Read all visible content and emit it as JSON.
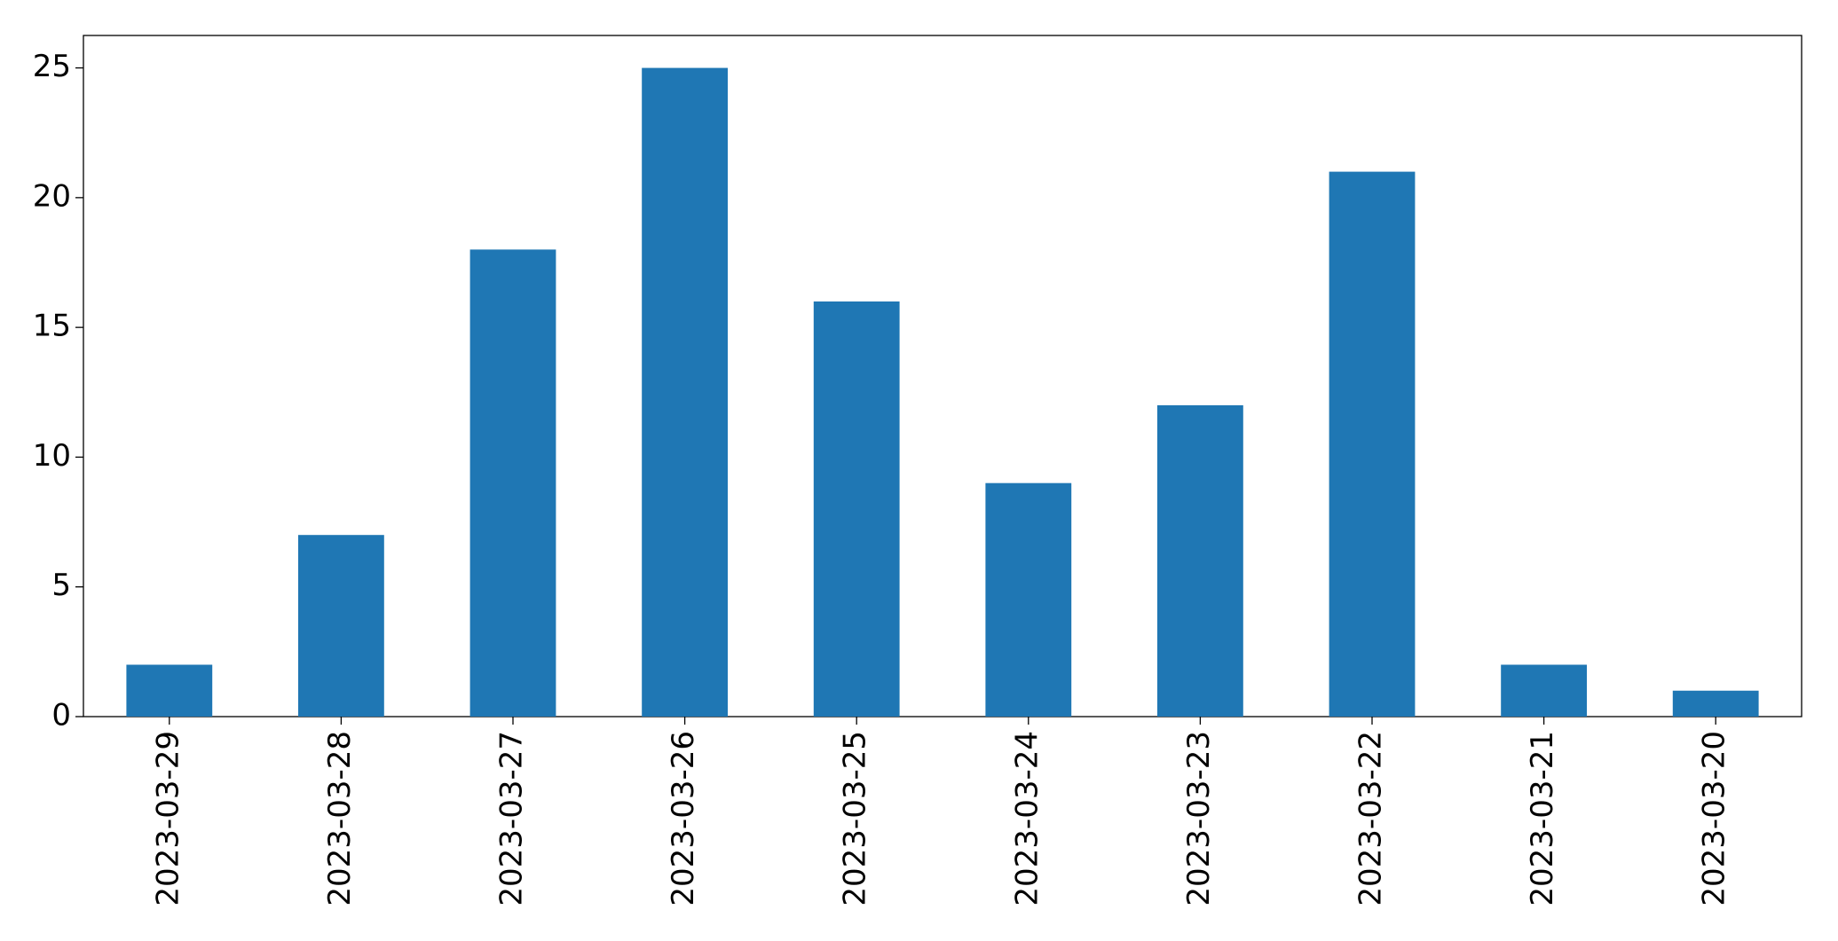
{
  "chart_data": {
    "type": "bar",
    "categories": [
      "2023-03-29",
      "2023-03-28",
      "2023-03-27",
      "2023-03-26",
      "2023-03-25",
      "2023-03-24",
      "2023-03-23",
      "2023-03-22",
      "2023-03-21",
      "2023-03-20"
    ],
    "values": [
      2,
      7,
      18,
      25,
      16,
      9,
      12,
      21,
      2,
      1
    ],
    "color": "#1f77b4",
    "ylim": [
      0,
      26.25
    ],
    "yticks": [
      0,
      5,
      10,
      15,
      20,
      25
    ],
    "grid": false
  }
}
